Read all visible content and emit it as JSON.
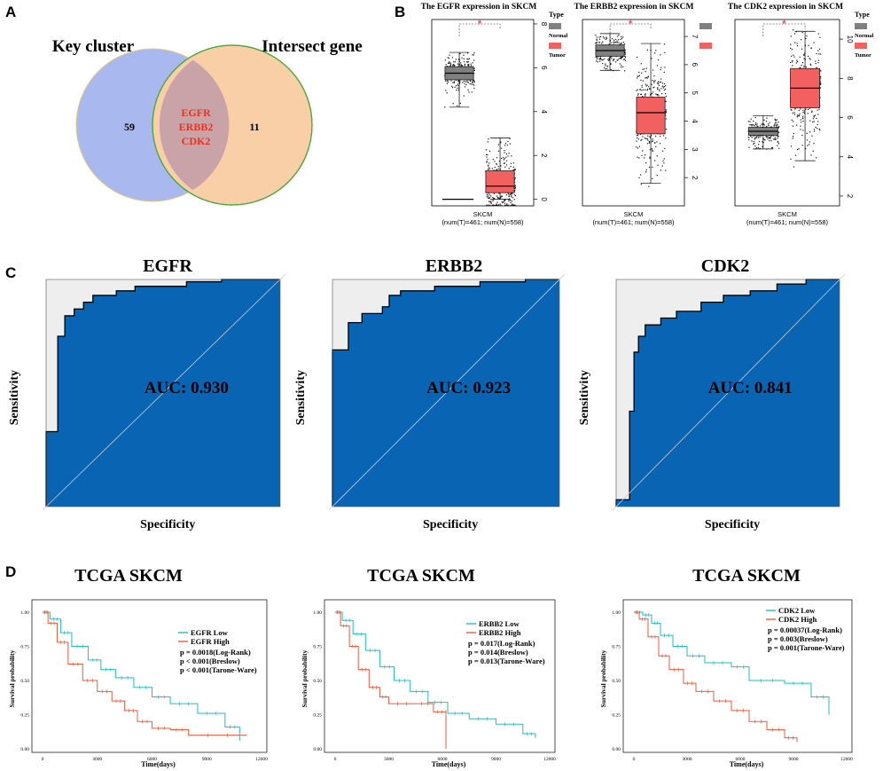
{
  "panels": {
    "A": "A",
    "B": "B",
    "C": "C",
    "D": "D"
  },
  "colors": {
    "venn_left": "#aab8f0",
    "venn_right": "#f9cfa8",
    "venn_overlap": "#c9a3a8",
    "box_normal": "#808080",
    "box_tumor": "#f26060",
    "roc_fill": "#0a64b4",
    "roc_gap": "#eeeeee",
    "km_low": "#1ebfc8",
    "km_high": "#f05a3c",
    "sig": "#e32222",
    "gene_red": "#e8321e"
  },
  "chart_data": [
    {
      "type": "venn",
      "sets": [
        {
          "name": "Key cluster",
          "only": 59
        },
        {
          "name": "Intersect gene",
          "only": 11
        }
      ],
      "intersection": [
        "EGFR",
        "ERBB2",
        "CDK2"
      ]
    },
    {
      "type": "box",
      "title": "The EGFR expression in SKCM",
      "legend_title": "Type",
      "legend": [
        "Normal",
        "Tumor"
      ],
      "category": "SKCM",
      "n_label": "(num(T)=461; num(N)=558)",
      "significance": "*",
      "yticks": [
        0,
        2,
        4,
        6,
        8
      ],
      "ylim": [
        -0.3,
        8.2
      ],
      "normal": {
        "q1": 5.45,
        "median": 5.75,
        "q3": 6.05,
        "whisker_low": 4.2,
        "whisker_high": 6.7
      },
      "tumor": {
        "q1": 0.3,
        "median": 0.6,
        "q3": 1.3,
        "whisker_low": 0.0,
        "whisker_high": 2.8
      }
    },
    {
      "type": "box",
      "title": "The ERBB2 expression in SKCM",
      "legend_title": "",
      "legend": [],
      "category": "SKCM",
      "n_label": "(num(T)=461; num(N)=558)",
      "significance": "*",
      "yticks": [
        2,
        3,
        4,
        5,
        6,
        7
      ],
      "ylim": [
        1,
        7.6
      ],
      "normal": {
        "q1": 6.3,
        "median": 6.5,
        "q3": 6.7,
        "whisker_low": 5.8,
        "whisker_high": 7.1
      },
      "tumor": {
        "q1": 3.55,
        "median": 4.3,
        "q3": 4.85,
        "whisker_low": 1.8,
        "whisker_high": 6.75
      }
    },
    {
      "type": "box",
      "title": "The CDK2 expression in SKCM",
      "legend_title": "Type",
      "legend": [
        "Normal",
        "Tumor"
      ],
      "category": "SKCM",
      "n_label": "(num(T)=461; num(N)=558)",
      "significance": "*",
      "yticks": [
        2,
        4,
        6,
        8,
        10
      ],
      "ylim": [
        1.5,
        11
      ],
      "normal": {
        "q1": 5.1,
        "median": 5.3,
        "q3": 5.5,
        "whisker_low": 4.4,
        "whisker_high": 6.1
      },
      "tumor": {
        "q1": 6.5,
        "median": 7.5,
        "q3": 8.5,
        "whisker_low": 3.8,
        "whisker_high": 10.4
      }
    },
    {
      "type": "roc",
      "title": "EGFR",
      "xlabel": "Specificity",
      "ylabel": "Sensitivity",
      "auc_label": "AUC: 0.930",
      "points": [
        [
          0,
          0
        ],
        [
          0,
          0.33
        ],
        [
          0.05,
          0.33
        ],
        [
          0.05,
          0.75
        ],
        [
          0.08,
          0.75
        ],
        [
          0.08,
          0.84
        ],
        [
          0.12,
          0.84
        ],
        [
          0.12,
          0.87
        ],
        [
          0.16,
          0.87
        ],
        [
          0.16,
          0.9
        ],
        [
          0.2,
          0.9
        ],
        [
          0.2,
          0.93
        ],
        [
          0.3,
          0.93
        ],
        [
          0.3,
          0.95
        ],
        [
          0.38,
          0.95
        ],
        [
          0.38,
          0.97
        ],
        [
          0.6,
          0.97
        ],
        [
          0.6,
          0.99
        ],
        [
          0.75,
          0.99
        ],
        [
          0.75,
          1
        ],
        [
          1,
          1
        ]
      ]
    },
    {
      "type": "roc",
      "title": "ERBB2",
      "xlabel": "Specificity",
      "ylabel": "Sensitivity",
      "auc_label": "AUC: 0.923",
      "points": [
        [
          0,
          0
        ],
        [
          0,
          0.69
        ],
        [
          0.07,
          0.69
        ],
        [
          0.07,
          0.81
        ],
        [
          0.13,
          0.81
        ],
        [
          0.13,
          0.85
        ],
        [
          0.22,
          0.85
        ],
        [
          0.22,
          0.88
        ],
        [
          0.25,
          0.88
        ],
        [
          0.25,
          0.93
        ],
        [
          0.3,
          0.93
        ],
        [
          0.3,
          0.95
        ],
        [
          0.45,
          0.95
        ],
        [
          0.45,
          0.97
        ],
        [
          0.65,
          0.97
        ],
        [
          0.65,
          0.99
        ],
        [
          0.85,
          0.99
        ],
        [
          0.85,
          1
        ],
        [
          1,
          1
        ]
      ]
    },
    {
      "type": "roc",
      "title": "CDK2",
      "xlabel": "Specificity",
      "ylabel": "Sensitivity",
      "auc_label": "AUC: 0.841",
      "points": [
        [
          0,
          0
        ],
        [
          0,
          0.03
        ],
        [
          0.06,
          0.03
        ],
        [
          0.06,
          0.42
        ],
        [
          0.08,
          0.42
        ],
        [
          0.08,
          0.68
        ],
        [
          0.1,
          0.68
        ],
        [
          0.1,
          0.75
        ],
        [
          0.13,
          0.75
        ],
        [
          0.13,
          0.8
        ],
        [
          0.2,
          0.8
        ],
        [
          0.2,
          0.83
        ],
        [
          0.27,
          0.83
        ],
        [
          0.27,
          0.86
        ],
        [
          0.38,
          0.86
        ],
        [
          0.38,
          0.9
        ],
        [
          0.48,
          0.9
        ],
        [
          0.48,
          0.93
        ],
        [
          0.6,
          0.93
        ],
        [
          0.6,
          0.95
        ],
        [
          0.72,
          0.95
        ],
        [
          0.72,
          0.98
        ],
        [
          0.85,
          0.98
        ],
        [
          0.85,
          1
        ],
        [
          1,
          1
        ]
      ]
    },
    {
      "type": "km",
      "title": "TCGA SKCM",
      "xlabel": "Time(days)",
      "ylabel": "Survival probability",
      "xticks": [
        0,
        3000,
        6000,
        9000,
        12000
      ],
      "yticks": [
        "0.00",
        "0.25",
        "0.50",
        "0.75",
        "1.00"
      ],
      "xlim": [
        0,
        12000
      ],
      "ylim": [
        0,
        1
      ],
      "series": [
        {
          "name": "EGFR Low",
          "points": [
            [
              0,
              1
            ],
            [
              400,
              0.95
            ],
            [
              1000,
              0.85
            ],
            [
              1600,
              0.75
            ],
            [
              2500,
              0.65
            ],
            [
              3200,
              0.58
            ],
            [
              4000,
              0.52
            ],
            [
              5000,
              0.45
            ],
            [
              6000,
              0.38
            ],
            [
              7000,
              0.33
            ],
            [
              8500,
              0.26
            ],
            [
              10000,
              0.16
            ],
            [
              10800,
              0.06
            ]
          ]
        },
        {
          "name": "EGFR High",
          "points": [
            [
              0,
              1
            ],
            [
              300,
              0.92
            ],
            [
              800,
              0.78
            ],
            [
              1400,
              0.62
            ],
            [
              2200,
              0.5
            ],
            [
              3000,
              0.42
            ],
            [
              3800,
              0.35
            ],
            [
              4500,
              0.28
            ],
            [
              5200,
              0.2
            ],
            [
              6000,
              0.15
            ],
            [
              7000,
              0.14
            ],
            [
              8000,
              0.1
            ],
            [
              11200,
              0.1
            ]
          ]
        }
      ],
      "stats": [
        "p = 0.0018(Log-Rank)",
        "p < 0.001(Breslow)",
        "p < 0.001(Tarone-Ware)"
      ]
    },
    {
      "type": "km",
      "title": "TCGA SKCM",
      "xlabel": "Time(days)",
      "ylabel": "Survival probability",
      "xticks": [
        0,
        3000,
        6000,
        9000,
        12000
      ],
      "yticks": [
        "0.00",
        "0.25",
        "0.50",
        "0.75",
        "1.00"
      ],
      "xlim": [
        0,
        12000
      ],
      "ylim": [
        0,
        1
      ],
      "series": [
        {
          "name": "ERBB2 Low",
          "points": [
            [
              0,
              1
            ],
            [
              400,
              0.94
            ],
            [
              1000,
              0.84
            ],
            [
              1700,
              0.72
            ],
            [
              2500,
              0.6
            ],
            [
              3300,
              0.5
            ],
            [
              4200,
              0.42
            ],
            [
              5200,
              0.34
            ],
            [
              6300,
              0.26
            ],
            [
              7500,
              0.22
            ],
            [
              9000,
              0.18
            ],
            [
              10500,
              0.11
            ],
            [
              11200,
              0.08
            ]
          ]
        },
        {
          "name": "ERBB2 High",
          "points": [
            [
              0,
              1
            ],
            [
              300,
              0.9
            ],
            [
              800,
              0.75
            ],
            [
              1300,
              0.58
            ],
            [
              1900,
              0.45
            ],
            [
              2500,
              0.38
            ],
            [
              3000,
              0.33
            ],
            [
              4500,
              0.33
            ],
            [
              5500,
              0.27
            ],
            [
              6200,
              0.27
            ],
            [
              6200,
              0.0
            ]
          ]
        }
      ],
      "stats": [
        "p = 0.017(Log-Rank)",
        "p = 0.014(Breslow)",
        "p = 0.013(Tarone-Ware)"
      ]
    },
    {
      "type": "km",
      "title": "TCGA SKCM",
      "xlabel": "Time(days)",
      "ylabel": "Survival probability",
      "xticks": [
        0,
        3000,
        6000,
        9000,
        12000
      ],
      "yticks": [
        "0.00",
        "0.25",
        "0.50",
        "0.75",
        "1.00"
      ],
      "xlim": [
        0,
        12000
      ],
      "ylim": [
        0,
        1
      ],
      "series": [
        {
          "name": "CDK2 Low",
          "points": [
            [
              0,
              1
            ],
            [
              500,
              0.98
            ],
            [
              1000,
              0.92
            ],
            [
              1500,
              0.83
            ],
            [
              2200,
              0.75
            ],
            [
              3000,
              0.68
            ],
            [
              4000,
              0.63
            ],
            [
              5500,
              0.6
            ],
            [
              6500,
              0.5
            ],
            [
              8500,
              0.48
            ],
            [
              10000,
              0.38
            ],
            [
              11000,
              0.25
            ]
          ]
        },
        {
          "name": "CDK2 High",
          "points": [
            [
              0,
              1
            ],
            [
              300,
              0.95
            ],
            [
              800,
              0.82
            ],
            [
              1400,
              0.68
            ],
            [
              2000,
              0.58
            ],
            [
              2800,
              0.48
            ],
            [
              3500,
              0.42
            ],
            [
              4500,
              0.35
            ],
            [
              5500,
              0.28
            ],
            [
              6500,
              0.2
            ],
            [
              7500,
              0.14
            ],
            [
              8500,
              0.08
            ],
            [
              9200,
              0.05
            ]
          ]
        }
      ],
      "stats": [
        "p = 0.00037(Log-Rank)",
        "p = 0.003(Breslow)",
        "p = 0.001(Tarone-Ware)"
      ]
    }
  ]
}
